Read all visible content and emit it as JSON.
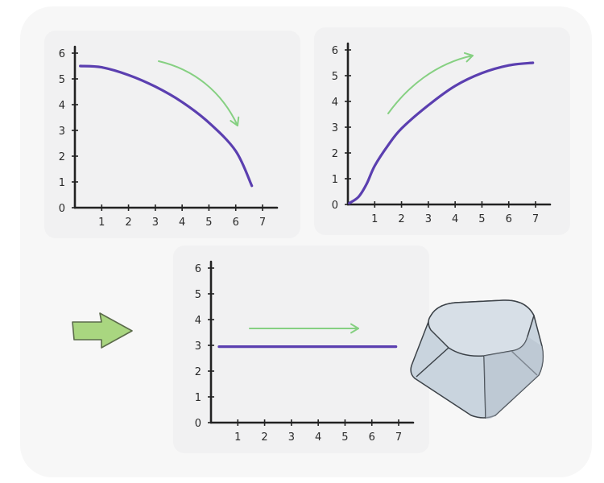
{
  "chart_data": [
    {
      "type": "line",
      "x_ticks": [
        "1",
        "2",
        "3",
        "4",
        "5",
        "6",
        "7"
      ],
      "y_ticks": [
        "0",
        "1",
        "2",
        "3",
        "4",
        "5",
        "6"
      ],
      "xlim": [
        0,
        7.3
      ],
      "ylim": [
        0,
        6
      ],
      "series": [
        {
          "x": [
            0.2,
            1,
            2,
            3,
            4,
            5,
            6,
            6.6
          ],
          "y": [
            5.5,
            5.45,
            5.15,
            4.7,
            4.1,
            3.3,
            2.2,
            0.85
          ],
          "color": "#5b3fb0"
        }
      ],
      "trend_arrow": "down",
      "arrow_color": "#86d082"
    },
    {
      "type": "line",
      "x_ticks": [
        "1",
        "2",
        "3",
        "4",
        "5",
        "6",
        "7"
      ],
      "y_ticks": [
        "0",
        "1",
        "2",
        "3",
        "4",
        "5",
        "6"
      ],
      "xlim": [
        0,
        7.3
      ],
      "ylim": [
        0,
        6
      ],
      "series": [
        {
          "x": [
            0.05,
            0.4,
            0.7,
            1,
            1.5,
            2,
            3,
            4,
            5,
            6,
            6.9
          ],
          "y": [
            0.05,
            0.3,
            0.8,
            1.5,
            2.3,
            2.95,
            3.85,
            4.6,
            5.1,
            5.4,
            5.5
          ],
          "color": "#5b3fb0"
        }
      ],
      "trend_arrow": "up",
      "arrow_color": "#86d082"
    },
    {
      "type": "line",
      "x_ticks": [
        "1",
        "2",
        "3",
        "4",
        "5",
        "6",
        "7"
      ],
      "y_ticks": [
        "0",
        "1",
        "2",
        "3",
        "4",
        "5",
        "6"
      ],
      "xlim": [
        0,
        7.3
      ],
      "ylim": [
        0,
        6
      ],
      "series": [
        {
          "x": [
            0.3,
            6.9
          ],
          "y": [
            2.95,
            2.95
          ],
          "color": "#5b3fb0"
        }
      ],
      "trend_arrow": "right",
      "arrow_color": "#86d082"
    }
  ],
  "decorations": {
    "big_arrow_color": "#a9d680",
    "keycap_color": "#c9d4de"
  }
}
